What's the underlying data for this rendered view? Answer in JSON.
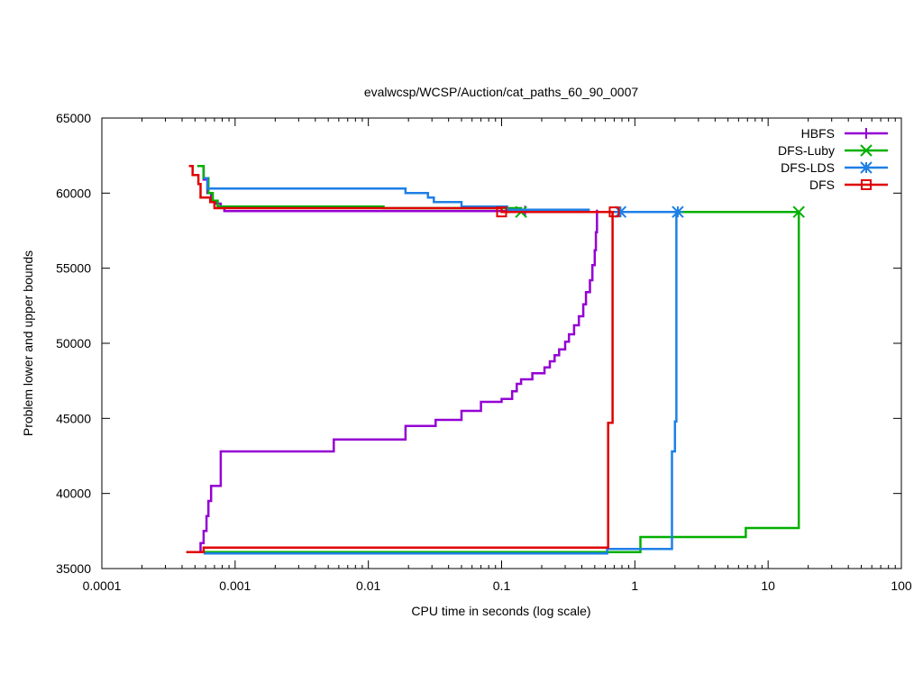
{
  "chart_data": {
    "type": "line",
    "title": "evalwcsp/WCSP/Auction/cat_paths_60_90_0007",
    "xlabel": "CPU time in seconds (log scale)",
    "ylabel": "Problem lower and upper bounds",
    "x_scale": "log",
    "xlim": [
      0.0001,
      100
    ],
    "ylim": [
      35000,
      65000
    ],
    "x_ticks": [
      {
        "value": 0.0001,
        "label": "0.0001"
      },
      {
        "value": 0.001,
        "label": "0.001"
      },
      {
        "value": 0.01,
        "label": "0.01"
      },
      {
        "value": 0.1,
        "label": "0.1"
      },
      {
        "value": 1,
        "label": "1"
      },
      {
        "value": 10,
        "label": "10"
      },
      {
        "value": 100,
        "label": "100"
      }
    ],
    "y_ticks": [
      {
        "value": 35000,
        "label": "35000"
      },
      {
        "value": 40000,
        "label": "40000"
      },
      {
        "value": 45000,
        "label": "45000"
      },
      {
        "value": 50000,
        "label": "50000"
      },
      {
        "value": 55000,
        "label": "55000"
      },
      {
        "value": 60000,
        "label": "60000"
      },
      {
        "value": 65000,
        "label": "65000"
      }
    ],
    "grid": false,
    "legend_position": "top-right",
    "series": [
      {
        "name": "HBFS",
        "color": "#9400d3",
        "marker": "plus",
        "upper_bound": [
          [
            0.00058,
            61800
          ],
          [
            0.00058,
            60900
          ],
          [
            0.00062,
            60900
          ],
          [
            0.00062,
            60000
          ],
          [
            0.00066,
            60000
          ],
          [
            0.00066,
            59500
          ],
          [
            0.00072,
            59500
          ],
          [
            0.00072,
            59300
          ],
          [
            0.00078,
            59300
          ],
          [
            0.00078,
            59100
          ],
          [
            0.00083,
            59100
          ],
          [
            0.00083,
            58800
          ],
          [
            0.15,
            58800
          ]
        ],
        "lower_bound": [
          [
            0.00055,
            36100
          ],
          [
            0.00055,
            36700
          ],
          [
            0.00058,
            36700
          ],
          [
            0.00058,
            37500
          ],
          [
            0.00061,
            37500
          ],
          [
            0.00061,
            38500
          ],
          [
            0.00063,
            38500
          ],
          [
            0.00063,
            39500
          ],
          [
            0.00066,
            39500
          ],
          [
            0.00066,
            40500
          ],
          [
            0.00078,
            40500
          ],
          [
            0.00078,
            42800
          ],
          [
            0.0055,
            42800
          ],
          [
            0.0055,
            43600
          ],
          [
            0.019,
            43600
          ],
          [
            0.019,
            44500
          ],
          [
            0.032,
            44500
          ],
          [
            0.032,
            44900
          ],
          [
            0.05,
            44900
          ],
          [
            0.05,
            45500
          ],
          [
            0.07,
            45500
          ],
          [
            0.07,
            46100
          ],
          [
            0.1,
            46100
          ],
          [
            0.1,
            46300
          ],
          [
            0.12,
            46300
          ],
          [
            0.12,
            46800
          ],
          [
            0.13,
            46800
          ],
          [
            0.13,
            47300
          ],
          [
            0.14,
            47300
          ],
          [
            0.14,
            47600
          ],
          [
            0.17,
            47600
          ],
          [
            0.17,
            48000
          ],
          [
            0.21,
            48000
          ],
          [
            0.21,
            48400
          ],
          [
            0.23,
            48400
          ],
          [
            0.23,
            48800
          ],
          [
            0.25,
            48800
          ],
          [
            0.25,
            49200
          ],
          [
            0.27,
            49200
          ],
          [
            0.27,
            49600
          ],
          [
            0.3,
            49600
          ],
          [
            0.3,
            50100
          ],
          [
            0.32,
            50100
          ],
          [
            0.32,
            50600
          ],
          [
            0.35,
            50600
          ],
          [
            0.35,
            51200
          ],
          [
            0.38,
            51200
          ],
          [
            0.38,
            51800
          ],
          [
            0.41,
            51800
          ],
          [
            0.41,
            52600
          ],
          [
            0.43,
            52600
          ],
          [
            0.43,
            53400
          ],
          [
            0.46,
            53400
          ],
          [
            0.46,
            54200
          ],
          [
            0.48,
            54200
          ],
          [
            0.48,
            55200
          ],
          [
            0.5,
            55200
          ],
          [
            0.5,
            56200
          ],
          [
            0.51,
            56200
          ],
          [
            0.51,
            57400
          ],
          [
            0.52,
            57400
          ],
          [
            0.52,
            58900
          ]
        ],
        "markers": [
          [
            0.15,
            58800
          ]
        ]
      },
      {
        "name": "DFS-Luby",
        "color": "#00b000",
        "marker": "cross",
        "upper_bound": [
          [
            0.00052,
            61800
          ],
          [
            0.00058,
            61800
          ],
          [
            0.00058,
            61000
          ],
          [
            0.00063,
            61000
          ],
          [
            0.00063,
            60000
          ],
          [
            0.00068,
            60000
          ],
          [
            0.00068,
            59500
          ],
          [
            0.00074,
            59500
          ],
          [
            0.00074,
            59100
          ],
          [
            0.013,
            59100
          ],
          [
            0.013,
            59000
          ],
          [
            0.14,
            59000
          ],
          [
            0.14,
            58750
          ],
          [
            17,
            58750
          ]
        ],
        "lower_bound": [
          [
            0.00058,
            36100
          ],
          [
            1.1,
            36100
          ],
          [
            1.1,
            37100
          ],
          [
            6.8,
            37100
          ],
          [
            6.8,
            37700
          ],
          [
            17,
            37700
          ],
          [
            17,
            58750
          ]
        ],
        "markers": [
          [
            0.14,
            58750
          ],
          [
            17,
            58750
          ]
        ]
      },
      {
        "name": "DFS-LDS",
        "color": "#1e7fe6",
        "marker": "star",
        "upper_bound": [
          [
            0.00058,
            61000
          ],
          [
            0.00062,
            61000
          ],
          [
            0.00062,
            60300
          ],
          [
            0.019,
            60300
          ],
          [
            0.019,
            60000
          ],
          [
            0.028,
            60000
          ],
          [
            0.028,
            59700
          ],
          [
            0.031,
            59700
          ],
          [
            0.031,
            59400
          ],
          [
            0.05,
            59400
          ],
          [
            0.05,
            59100
          ],
          [
            0.11,
            59100
          ],
          [
            0.11,
            58900
          ],
          [
            0.45,
            58900
          ],
          [
            0.45,
            58750
          ],
          [
            0.78,
            58750
          ],
          [
            2.1,
            58750
          ]
        ],
        "lower_bound": [
          [
            0.00058,
            36000
          ],
          [
            0.62,
            36000
          ],
          [
            0.62,
            36300
          ],
          [
            1.9,
            36300
          ],
          [
            1.9,
            42800
          ],
          [
            2.0,
            42800
          ],
          [
            2.0,
            44800
          ],
          [
            2.05,
            44800
          ],
          [
            2.05,
            58750
          ]
        ],
        "markers": [
          [
            0.78,
            58750
          ],
          [
            2.1,
            58750
          ]
        ]
      },
      {
        "name": "DFS",
        "color": "#e00000",
        "marker": "square",
        "upper_bound": [
          [
            0.00045,
            61800
          ],
          [
            0.00048,
            61800
          ],
          [
            0.00048,
            61200
          ],
          [
            0.00053,
            61200
          ],
          [
            0.00053,
            60600
          ],
          [
            0.00055,
            60600
          ],
          [
            0.00055,
            59700
          ],
          [
            0.00065,
            59700
          ],
          [
            0.00065,
            59400
          ],
          [
            0.0007,
            59400
          ],
          [
            0.0007,
            59000
          ],
          [
            0.1,
            59000
          ],
          [
            0.1,
            58750
          ],
          [
            0.7,
            58750
          ]
        ],
        "lower_bound": [
          [
            0.00043,
            36100
          ],
          [
            0.00058,
            36100
          ],
          [
            0.00058,
            36400
          ],
          [
            0.63,
            36400
          ],
          [
            0.63,
            44700
          ],
          [
            0.68,
            44700
          ],
          [
            0.68,
            58750
          ]
        ],
        "markers": [
          [
            0.1,
            58750
          ],
          [
            0.7,
            58750
          ]
        ]
      }
    ]
  }
}
